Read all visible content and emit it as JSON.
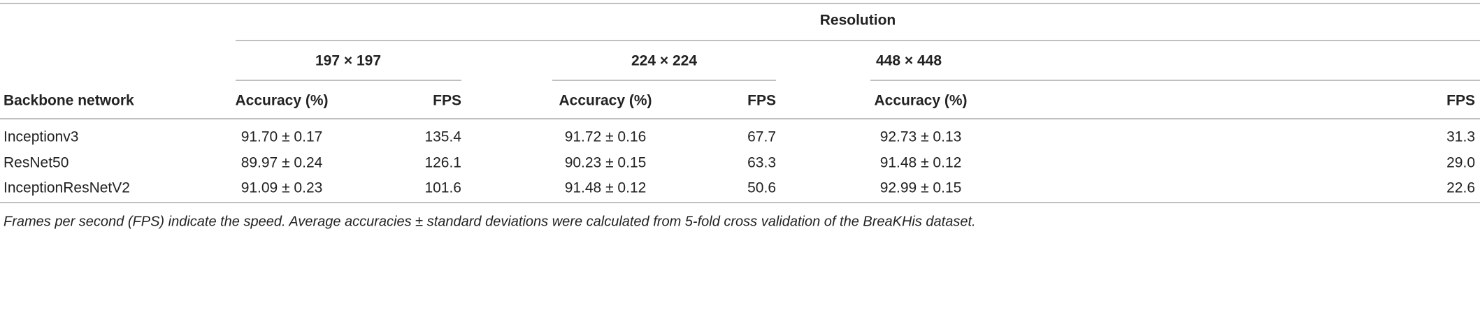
{
  "table": {
    "spanner": "Resolution",
    "groups": [
      "197 × 197",
      "224 × 224",
      "448 × 448"
    ],
    "columns": [
      "Backbone network",
      "Accuracy (%)",
      "FPS",
      "Accuracy (%)",
      "FPS",
      "Accuracy (%)",
      "FPS"
    ],
    "rows": [
      [
        "Inceptionv3",
        "91.70 ± 0.17",
        "135.4",
        "91.72 ± 0.16",
        "67.7",
        "92.73 ± 0.13",
        "31.3"
      ],
      [
        "ResNet50",
        "89.97 ± 0.24",
        "126.1",
        "90.23 ± 0.15",
        "63.3",
        "91.48 ± 0.12",
        "29.0"
      ],
      [
        "InceptionResNetV2",
        "91.09 ± 0.23",
        "101.6",
        "91.48 ± 0.12",
        "50.6",
        "92.99 ± 0.15",
        "22.6"
      ]
    ]
  },
  "footnote": "Frames per second (FPS) indicate the speed. Average accuracies ± standard deviations were calculated from 5-fold cross validation of the BreaKHis dataset."
}
